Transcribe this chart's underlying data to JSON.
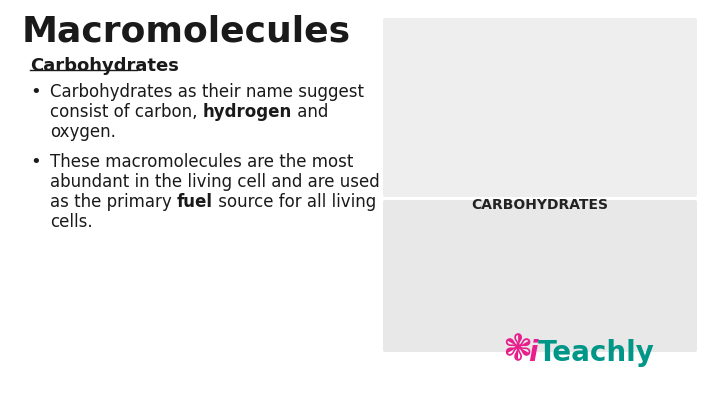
{
  "title": "Macromolecules",
  "subtitle": "Carbohydrates",
  "bullet1_line1": "Carbohydrates as their name suggest",
  "bullet1_line2_pre": "consist of carbon, ",
  "bullet1_line2_bold": "hydrogen",
  "bullet1_line2_post": " and",
  "bullet1_line3": "oxygen.",
  "bullet2_line1": "These macromolecules are the most",
  "bullet2_line2": "abundant in the living cell and are used",
  "bullet2_line3_pre": "as the primary ",
  "bullet2_line3_bold": "fuel",
  "bullet2_line3_post": " source for all living",
  "bullet2_line4": "cells.",
  "logo_i": "i",
  "logo_rest": "Teachly",
  "logo_pink": "#e91e8c",
  "logo_teal": "#009688",
  "bg_color": "#ffffff",
  "text_color": "#1a1a1a",
  "title_size": 26,
  "sub_size": 13,
  "body_size": 12,
  "logo_size": 20,
  "carbo_label": "CARBOHYDRATES"
}
